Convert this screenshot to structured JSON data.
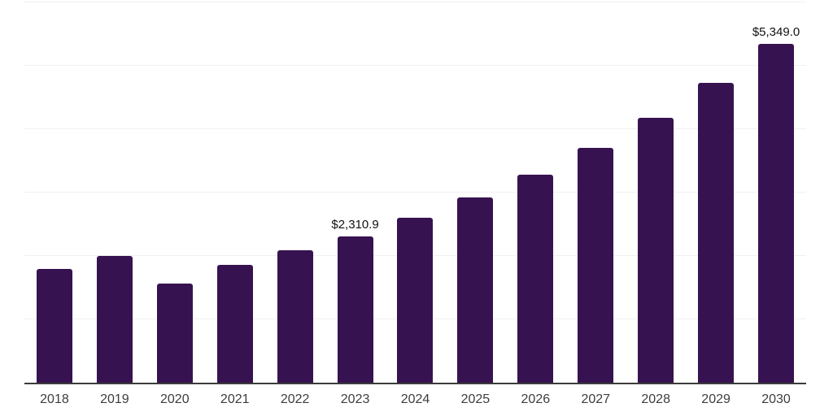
{
  "chart_data": {
    "type": "bar",
    "title": "",
    "xlabel": "",
    "ylabel": "",
    "categories": [
      "2018",
      "2019",
      "2020",
      "2021",
      "2022",
      "2023",
      "2024",
      "2025",
      "2026",
      "2027",
      "2028",
      "2029",
      "2030"
    ],
    "values": [
      1800,
      2000,
      1560,
      1860,
      2090,
      2310.9,
      2600,
      2920,
      3280,
      3705,
      4180,
      4730,
      5349.0
    ],
    "bar_labels": [
      "",
      "",
      "",
      "",
      "",
      "$2,310.9",
      "",
      "",
      "",
      "",
      "",
      "",
      "$5,349.0"
    ],
    "ylim": [
      0,
      6000
    ],
    "gridline_values": [
      1000,
      2000,
      3000,
      4000,
      5000,
      6000
    ],
    "grid": "horizontal",
    "y_axis_tick_labels": "none",
    "legend_position": "none",
    "colors": {
      "bar": "#371250",
      "background": "#ffffff",
      "gridline": "#f0f0f0",
      "axis_line": "#3b3b3b",
      "tick_label": "#3d3d3d",
      "data_label": "#111111"
    }
  }
}
